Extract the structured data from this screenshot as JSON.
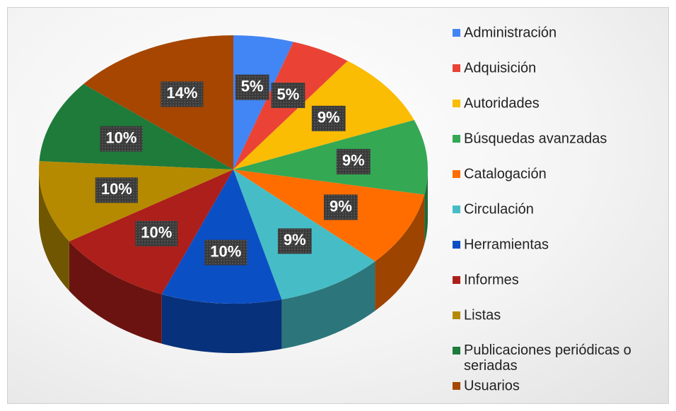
{
  "chart_data": {
    "type": "pie",
    "categories": [
      "Administración",
      "Adquisición",
      "Autoridades",
      "Búsquedas avanzadas",
      "Catalogación",
      "Circulación",
      "Herramientas",
      "Informes",
      "Listas",
      "Publicaciones periódicas o seriadas",
      "Usuarios"
    ],
    "values": [
      5,
      5,
      9,
      9,
      9,
      9,
      10,
      10,
      10,
      10,
      14
    ],
    "value_labels": [
      "5%",
      "5%",
      "9%",
      "9%",
      "9%",
      "9%",
      "10%",
      "10%",
      "10%",
      "10%",
      "14%"
    ],
    "colors": [
      "#4285f4",
      "#ea4335",
      "#fbbc04",
      "#34a853",
      "#ff6d01",
      "#46bdc6",
      "#0b4fc4",
      "#ad1f1a",
      "#b58a00",
      "#1e7b3a",
      "#a64600"
    ],
    "legend": "right"
  }
}
